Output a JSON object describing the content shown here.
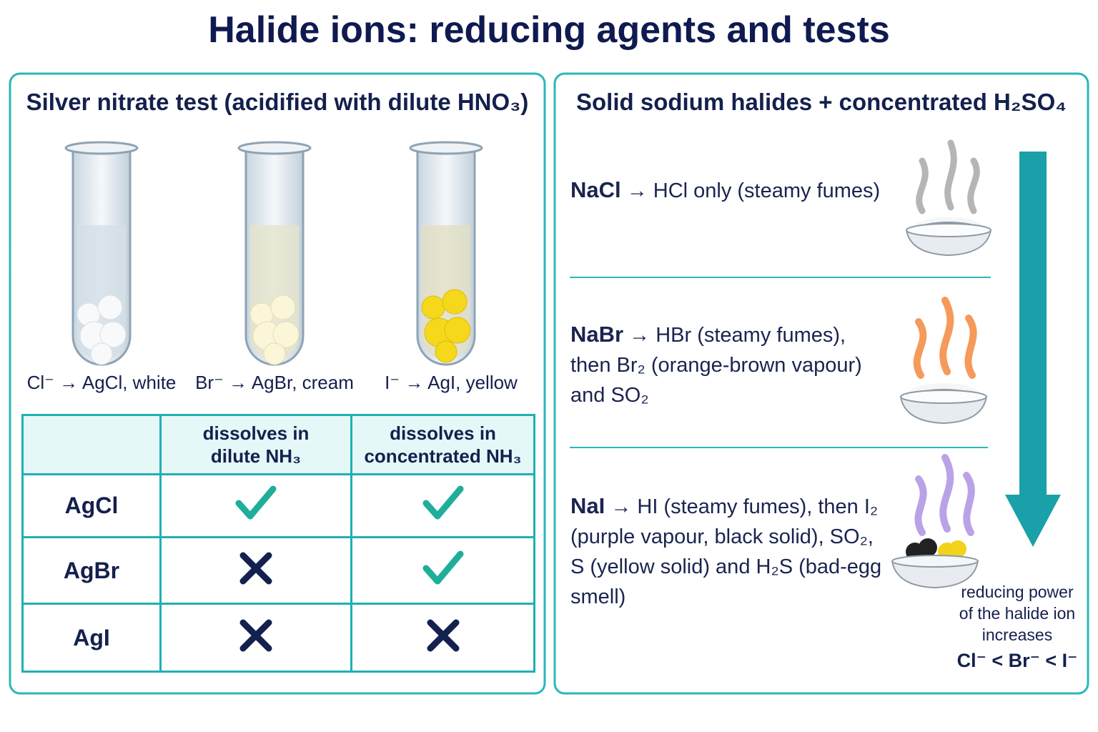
{
  "title": "Halide ions: reducing agents and tests",
  "silver_nitrate": {
    "heading": "Silver nitrate test (acidified with dilute HNO₃)",
    "tubes": [
      "Cl⁻ → AgCl, white",
      "Br⁻ → AgBr, cream",
      "I⁻ → AgI, yellow"
    ],
    "table": {
      "columns": [
        "dissolves in\ndilute NH₃",
        "dissolves in\nconcentrated NH₃"
      ],
      "rows": [
        {
          "label": "AgCl",
          "dissolves": [
            true,
            true
          ]
        },
        {
          "label": "AgBr",
          "dissolves": [
            false,
            true
          ]
        },
        {
          "label": "AgI",
          "dissolves": [
            false,
            false
          ]
        }
      ]
    }
  },
  "sulfuric_acid": {
    "heading": "Solid sodium halides + concentrated H₂SO₄",
    "entries": [
      {
        "formula": "NaCl",
        "lines": [
          "→ HCl only (steamy fumes)"
        ]
      },
      {
        "formula": "NaBr",
        "lines": [
          "→ HBr (steamy fumes),",
          "then Br₂ (orange-brown vapour)",
          "and SO₂"
        ]
      },
      {
        "formula": "NaI",
        "lines": [
          "→ HI (steamy fumes), then I₂",
          "(purple vapour, black solid), SO₂,",
          "S (yellow solid) and H₂S (bad-egg",
          "smell)"
        ]
      }
    ],
    "arrow_caption": [
      "reducing power",
      "of the halide ion",
      "increases"
    ],
    "order": "Cl⁻ < Br⁻ < I⁻"
  }
}
